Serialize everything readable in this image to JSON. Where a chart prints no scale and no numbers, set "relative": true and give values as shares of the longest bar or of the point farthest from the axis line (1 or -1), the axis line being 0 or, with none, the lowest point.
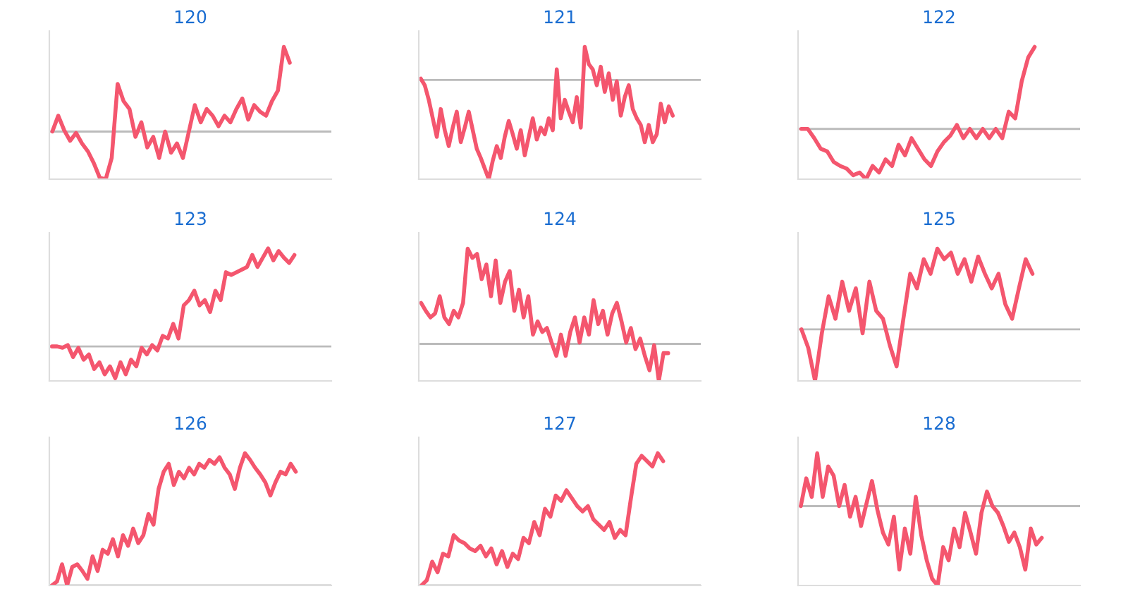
{
  "chart_data": [
    {
      "type": "line",
      "title": "120",
      "relative": true,
      "categories": [
        null,
        null,
        null,
        null,
        null,
        null,
        null,
        null,
        null,
        null,
        null,
        null,
        null,
        null,
        null,
        null,
        null,
        null,
        null,
        null,
        null,
        null,
        null,
        null,
        null,
        null,
        null,
        null,
        null,
        null,
        null,
        null,
        null,
        null,
        null,
        null,
        null,
        null,
        null,
        null,
        null
      ],
      "series": [
        {
          "color": "#f4566e",
          "values": [
            0.36,
            0.48,
            0.37,
            0.29,
            0.35,
            0.27,
            0.21,
            0.12,
            0.01,
            0,
            0.16,
            0.72,
            0.59,
            0.53,
            0.32,
            0.43,
            0.24,
            0.32,
            0.16,
            0.36,
            0.2,
            0.27,
            0.16,
            0.36,
            0.56,
            0.43,
            0.53,
            0.48,
            0.4,
            0.48,
            0.43,
            0.53,
            0.61,
            0.45,
            0.56,
            0.51,
            0.48,
            0.59,
            0.67,
            1,
            0.88
          ]
        }
      ],
      "ref_lines": [
        {
          "axis": "y",
          "value": 0.36,
          "color": "#bbbbbb"
        }
      ],
      "grid": false,
      "legend": false
    },
    {
      "type": "line",
      "title": "121",
      "relative": true,
      "categories": [
        null,
        null,
        null,
        null,
        null,
        null,
        null,
        null,
        null,
        null,
        null,
        null,
        null,
        null,
        null,
        null,
        null,
        null,
        null,
        null,
        null,
        null,
        null,
        null,
        null,
        null,
        null,
        null,
        null,
        null,
        null,
        null,
        null,
        null,
        null,
        null,
        null,
        null,
        null,
        null,
        null,
        null,
        null,
        null,
        null,
        null,
        null,
        null,
        null,
        null,
        null,
        null,
        null,
        null,
        null,
        null,
        null,
        null,
        null,
        null,
        null,
        null,
        null,
        null
      ],
      "series": [
        {
          "color": "#f4566e",
          "values": [
            0.76,
            0.71,
            0.6,
            0.46,
            0.32,
            0.53,
            0.37,
            0.25,
            0.39,
            0.51,
            0.28,
            0.39,
            0.51,
            0.37,
            0.23,
            0.16,
            0.08,
            0,
            0.14,
            0.25,
            0.16,
            0.32,
            0.44,
            0.34,
            0.23,
            0.37,
            0.18,
            0.32,
            0.46,
            0.3,
            0.39,
            0.34,
            0.46,
            0.37,
            0.83,
            0.46,
            0.6,
            0.51,
            0.43,
            0.62,
            0.39,
            1,
            0.87,
            0.83,
            0.71,
            0.85,
            0.66,
            0.8,
            0.6,
            0.74,
            0.48,
            0.62,
            0.71,
            0.53,
            0.46,
            0.41,
            0.28,
            0.41,
            0.28,
            0.34,
            0.57,
            0.43,
            0.55,
            0.48
          ]
        }
      ],
      "ref_lines": [
        {
          "axis": "y",
          "value": 0.75,
          "color": "#bbbbbb"
        }
      ],
      "grid": false,
      "legend": false
    },
    {
      "type": "line",
      "title": "122",
      "relative": true,
      "categories": [
        null,
        null,
        null,
        null,
        null,
        null,
        null,
        null,
        null,
        null,
        null,
        null,
        null,
        null,
        null,
        null,
        null,
        null,
        null,
        null,
        null,
        null,
        null,
        null,
        null,
        null,
        null,
        null,
        null,
        null,
        null,
        null,
        null,
        null,
        null,
        null,
        null
      ],
      "series": [
        {
          "color": "#f4566e",
          "values": [
            0.38,
            0.38,
            0.31,
            0.23,
            0.21,
            0.13,
            0.1,
            0.08,
            0.03,
            0.05,
            0,
            0.1,
            0.05,
            0.15,
            0.1,
            0.26,
            0.18,
            0.31,
            0.23,
            0.15,
            0.1,
            0.21,
            0.28,
            0.33,
            0.41,
            0.31,
            0.38,
            0.31,
            0.38,
            0.31,
            0.38,
            0.31,
            0.51,
            0.46,
            0.74,
            0.92,
            1
          ]
        }
      ],
      "ref_lines": [
        {
          "axis": "y",
          "value": 0.38,
          "color": "#bbbbbb"
        }
      ],
      "grid": false,
      "legend": false
    },
    {
      "type": "line",
      "title": "123",
      "relative": true,
      "categories": [
        null,
        null,
        null,
        null,
        null,
        null,
        null,
        null,
        null,
        null,
        null,
        null,
        null,
        null,
        null,
        null,
        null,
        null,
        null,
        null,
        null,
        null,
        null,
        null,
        null,
        null,
        null,
        null,
        null,
        null,
        null,
        null,
        null,
        null,
        null,
        null,
        null,
        null,
        null,
        null,
        null,
        null,
        null,
        null,
        null,
        null,
        null
      ],
      "series": [
        {
          "color": "#f4566e",
          "values": [
            0.26,
            0.26,
            0.25,
            0.27,
            0.18,
            0.25,
            0.16,
            0.2,
            0.09,
            0.14,
            0.05,
            0.11,
            0.02,
            0.14,
            0.05,
            0.16,
            0.11,
            0.25,
            0.2,
            0.27,
            0.23,
            0.34,
            0.32,
            0.43,
            0.32,
            0.57,
            0.61,
            0.68,
            0.57,
            0.61,
            0.52,
            0.68,
            0.61,
            0.82,
            0.8,
            0.82,
            0.84,
            0.86,
            0.95,
            0.86,
            0.93,
            1,
            0.91,
            0.98,
            0.93,
            0.89,
            0.95
          ]
        }
      ],
      "ref_lines": [
        {
          "axis": "y",
          "value": 0.26,
          "color": "#bbbbbb"
        }
      ],
      "grid": false,
      "legend": false
    },
    {
      "type": "line",
      "title": "124",
      "relative": true,
      "categories": [
        null,
        null,
        null,
        null,
        null,
        null,
        null,
        null,
        null,
        null,
        null,
        null,
        null,
        null,
        null,
        null,
        null,
        null,
        null,
        null,
        null,
        null,
        null,
        null,
        null,
        null,
        null,
        null,
        null,
        null,
        null,
        null,
        null,
        null,
        null,
        null,
        null,
        null,
        null,
        null,
        null,
        null,
        null,
        null,
        null,
        null,
        null,
        null,
        null,
        null,
        null,
        null,
        null,
        null
      ],
      "series": [
        {
          "color": "#f4566e",
          "values": [
            0.59,
            0.53,
            0.48,
            0.51,
            0.64,
            0.48,
            0.43,
            0.53,
            0.48,
            0.59,
            1,
            0.93,
            0.96,
            0.77,
            0.88,
            0.64,
            0.91,
            0.59,
            0.75,
            0.83,
            0.53,
            0.69,
            0.48,
            0.64,
            0.35,
            0.45,
            0.37,
            0.4,
            0.29,
            0.19,
            0.35,
            0.19,
            0.37,
            0.48,
            0.29,
            0.48,
            0.35,
            0.61,
            0.43,
            0.53,
            0.35,
            0.51,
            0.59,
            0.45,
            0.29,
            0.4,
            0.24,
            0.32,
            0.19,
            0.08,
            0.27,
            0,
            0.21,
            0.21
          ]
        }
      ],
      "ref_lines": [
        {
          "axis": "y",
          "value": 0.28,
          "color": "#bbbbbb"
        }
      ],
      "grid": false,
      "legend": false
    },
    {
      "type": "line",
      "title": "125",
      "relative": true,
      "categories": [
        null,
        null,
        null,
        null,
        null,
        null,
        null,
        null,
        null,
        null,
        null,
        null,
        null,
        null,
        null,
        null,
        null,
        null,
        null,
        null,
        null,
        null,
        null,
        null,
        null,
        null,
        null,
        null,
        null,
        null,
        null,
        null,
        null,
        null,
        null
      ],
      "series": [
        {
          "color": "#f4566e",
          "values": [
            0.39,
            0.25,
            0,
            0.36,
            0.64,
            0.47,
            0.75,
            0.53,
            0.7,
            0.36,
            0.75,
            0.53,
            0.47,
            0.27,
            0.11,
            0.47,
            0.81,
            0.7,
            0.92,
            0.81,
            1,
            0.92,
            0.97,
            0.81,
            0.92,
            0.75,
            0.94,
            0.81,
            0.7,
            0.81,
            0.58,
            0.47,
            0.7,
            0.92,
            0.81
          ]
        }
      ],
      "ref_lines": [
        {
          "axis": "y",
          "value": 0.39,
          "color": "#bbbbbb"
        }
      ],
      "grid": false,
      "legend": false
    },
    {
      "type": "line",
      "title": "126",
      "relative": true,
      "categories": [
        null,
        null,
        null,
        null,
        null,
        null,
        null,
        null,
        null,
        null,
        null,
        null,
        null,
        null,
        null,
        null,
        null,
        null,
        null,
        null,
        null,
        null,
        null,
        null,
        null,
        null,
        null,
        null,
        null,
        null,
        null,
        null,
        null,
        null,
        null,
        null,
        null,
        null,
        null,
        null,
        null,
        null,
        null,
        null,
        null,
        null,
        null,
        null,
        null
      ],
      "series": [
        {
          "color": "#f4566e",
          "values": [
            0,
            0.03,
            0.16,
            0,
            0.14,
            0.16,
            0.11,
            0.05,
            0.22,
            0.11,
            0.27,
            0.24,
            0.35,
            0.22,
            0.38,
            0.3,
            0.43,
            0.32,
            0.38,
            0.54,
            0.46,
            0.73,
            0.86,
            0.92,
            0.76,
            0.86,
            0.81,
            0.89,
            0.84,
            0.92,
            0.89,
            0.95,
            0.92,
            0.97,
            0.89,
            0.84,
            0.73,
            0.89,
            1,
            0.95,
            0.89,
            0.84,
            0.78,
            0.68,
            0.78,
            0.86,
            0.84,
            0.92,
            0.86
          ]
        }
      ],
      "ref_lines": [
        {
          "axis": "y",
          "value": 0,
          "color": "#bbbbbb"
        }
      ],
      "grid": false,
      "legend": false
    },
    {
      "type": "line",
      "title": "127",
      "relative": true,
      "categories": [
        null,
        null,
        null,
        null,
        null,
        null,
        null,
        null,
        null,
        null,
        null,
        null,
        null,
        null,
        null,
        null,
        null,
        null,
        null,
        null,
        null,
        null,
        null,
        null,
        null,
        null,
        null,
        null,
        null,
        null,
        null,
        null,
        null,
        null,
        null,
        null,
        null,
        null,
        null,
        null,
        null,
        null,
        null,
        null,
        null,
        null
      ],
      "series": [
        {
          "color": "#f4566e",
          "values": [
            0,
            0.04,
            0.18,
            0.1,
            0.24,
            0.22,
            0.38,
            0.34,
            0.32,
            0.28,
            0.26,
            0.3,
            0.22,
            0.28,
            0.16,
            0.26,
            0.14,
            0.24,
            0.2,
            0.36,
            0.32,
            0.48,
            0.38,
            0.58,
            0.52,
            0.68,
            0.64,
            0.72,
            0.66,
            0.6,
            0.56,
            0.6,
            0.5,
            0.46,
            0.42,
            0.48,
            0.36,
            0.42,
            0.38,
            0.66,
            0.92,
            0.98,
            0.94,
            0.9,
            1,
            0.94
          ]
        }
      ],
      "ref_lines": [
        {
          "axis": "y",
          "value": 0,
          "color": "#bbbbbb"
        }
      ],
      "grid": false,
      "legend": false
    },
    {
      "type": "line",
      "title": "128",
      "relative": true,
      "categories": [
        null,
        null,
        null,
        null,
        null,
        null,
        null,
        null,
        null,
        null,
        null,
        null,
        null,
        null,
        null,
        null,
        null,
        null,
        null,
        null,
        null,
        null,
        null,
        null,
        null,
        null,
        null,
        null,
        null,
        null,
        null,
        null,
        null,
        null,
        null,
        null,
        null,
        null,
        null,
        null,
        null,
        null,
        null,
        null,
        null
      ],
      "series": [
        {
          "color": "#f4566e",
          "values": [
            0.6,
            0.81,
            0.67,
            1,
            0.67,
            0.9,
            0.83,
            0.6,
            0.76,
            0.52,
            0.67,
            0.45,
            0.62,
            0.79,
            0.57,
            0.4,
            0.31,
            0.52,
            0.12,
            0.43,
            0.24,
            0.67,
            0.38,
            0.19,
            0.05,
            0,
            0.29,
            0.19,
            0.43,
            0.29,
            0.55,
            0.4,
            0.24,
            0.55,
            0.71,
            0.6,
            0.55,
            0.45,
            0.33,
            0.4,
            0.29,
            0.12,
            0.43,
            0.31,
            0.36
          ]
        }
      ],
      "ref_lines": [
        {
          "axis": "y",
          "value": 0.6,
          "color": "#bbbbbb"
        }
      ],
      "grid": false,
      "legend": false
    }
  ]
}
